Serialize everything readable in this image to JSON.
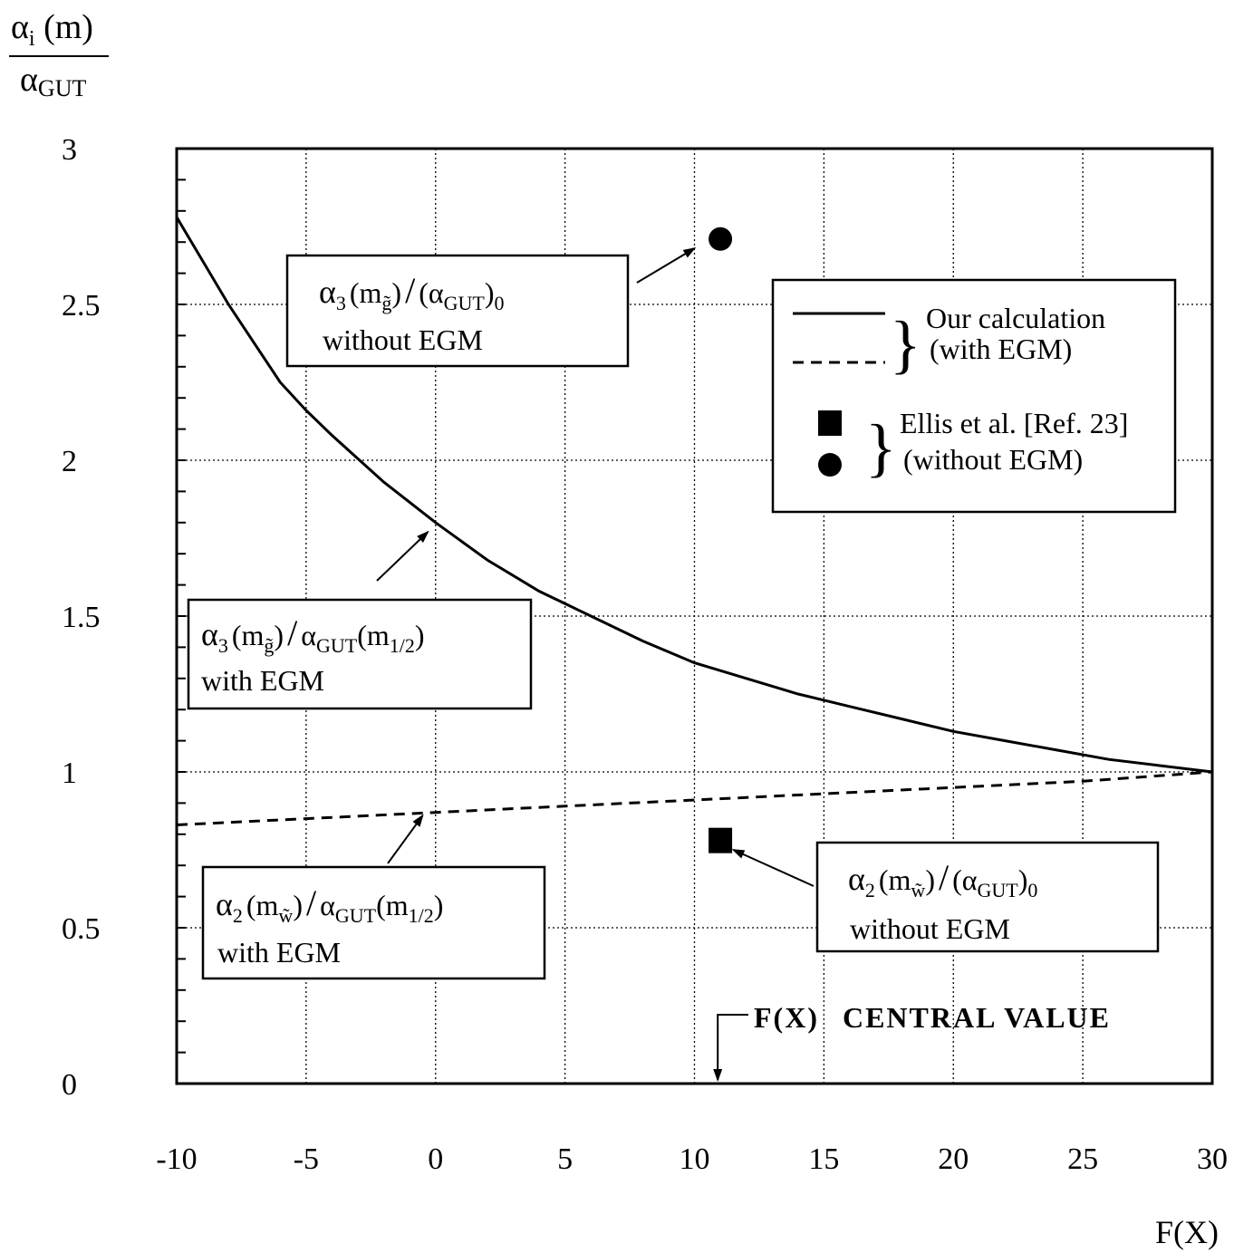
{
  "chart_data": {
    "type": "line",
    "ylabel": {
      "numerator": "α",
      "sub": "i",
      "arg": " (m)",
      "denominator": "α",
      "den_sub": "GUT"
    },
    "xlabel": "F(X)",
    "xlim": [
      -10,
      30
    ],
    "ylim": [
      0,
      3
    ],
    "x_ticks": [
      -10,
      -5,
      0,
      5,
      10,
      15,
      20,
      25,
      30
    ],
    "y_ticks": [
      0,
      0.5,
      1,
      1.5,
      2,
      2.5,
      3
    ],
    "x_tick_labels": [
      "-10",
      "-5",
      "0",
      "5",
      "10",
      "15",
      "20",
      "25",
      "30"
    ],
    "y_tick_labels": [
      "0",
      "0.5",
      "1",
      "1.5",
      "2",
      "2.5",
      "3"
    ],
    "grid": true,
    "series": [
      {
        "style": "solid",
        "x": [
          -10,
          -8,
          -6,
          -5,
          -4,
          -2,
          0,
          2,
          4,
          6,
          8,
          10,
          12,
          14,
          16,
          18,
          20,
          22,
          24,
          26,
          28,
          30
        ],
        "y": [
          2.78,
          2.5,
          2.25,
          2.16,
          2.08,
          1.93,
          1.8,
          1.68,
          1.58,
          1.5,
          1.42,
          1.35,
          1.3,
          1.25,
          1.21,
          1.17,
          1.13,
          1.1,
          1.07,
          1.04,
          1.02,
          1.0
        ]
      },
      {
        "style": "dashed",
        "x": [
          -10,
          -5,
          0,
          5,
          10,
          15,
          20,
          25,
          30
        ],
        "y": [
          0.83,
          0.85,
          0.87,
          0.89,
          0.91,
          0.93,
          0.95,
          0.97,
          1.0
        ]
      }
    ],
    "points": [
      {
        "marker": "circle",
        "x": 11,
        "y": 2.71
      },
      {
        "marker": "square",
        "x": 11,
        "y": 0.78
      }
    ],
    "legend": {
      "placement": "upper-right",
      "group1_line1": "Our calculation",
      "group1_line2": "(with EGM)",
      "group2_line1": "Ellis et al. [Ref. 23]",
      "group2_line2": "(without EGM)"
    },
    "annotations": {
      "a3_without": {
        "alpha": "α",
        "sub": "3",
        "paren_m": "(m",
        "m_sub": "g̃",
        "mid": ")",
        "slash": "/",
        "alpha2": "(α",
        "sub2": "GUT",
        "end": ")",
        "end_sub": "0",
        "line2": "without EGM",
        "target_x": 10,
        "target_y": 2.68
      },
      "a3_with": {
        "alpha": "α",
        "sub": "3",
        "paren_m": "(m",
        "m_sub": "g̃",
        "mid": ")",
        "slash": "/",
        "alpha2": "α",
        "sub2": "GUT",
        "arg": "(m",
        "arg_sub": "1/2",
        "end": ")",
        "line2": "with EGM",
        "target_x": -0.3,
        "target_y": 1.77
      },
      "a2_with": {
        "alpha": "α",
        "sub": "2",
        "paren_m": "(m",
        "m_sub": "w̃",
        "mid": ")",
        "slash": "/",
        "alpha2": "α",
        "sub2": "GUT",
        "arg": "(m",
        "arg_sub": "1/2",
        "end": ")",
        "line2": "with EGM",
        "target_x": -0.5,
        "target_y": 0.86
      },
      "a2_without": {
        "alpha": "α",
        "sub": "2",
        "paren_m": "(m",
        "m_sub": "w̃",
        "mid": ")",
        "slash": "/",
        "alpha2": "(α",
        "sub2": "GUT",
        "end": ")",
        "end_sub": "0",
        "line2": "without EGM",
        "target_x": 11.5,
        "target_y": 0.75
      },
      "central": {
        "label1": "F(X)",
        "label2": "CENTRAL VALUE",
        "x": 10.9
      }
    }
  }
}
